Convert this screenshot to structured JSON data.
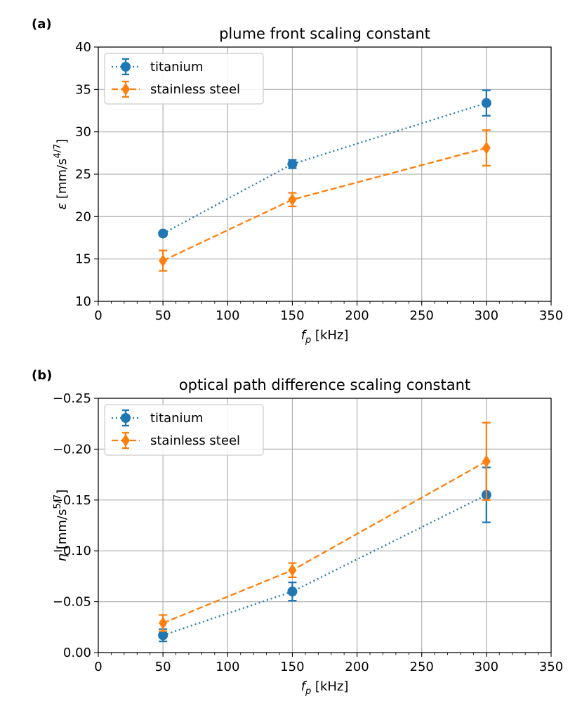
{
  "chart_data": [
    {
      "type": "line",
      "panel_label": "(a)",
      "title": "plume front scaling constant",
      "xlabel_symbol": "f",
      "xlabel_sub": "p",
      "xlabel_rest": " [kHz]",
      "ylabel_symbol": "ε",
      "ylabel_rest": " [mm/s",
      "ylabel_sup": "4/7",
      "ylabel_close": "]",
      "xlim": [
        0,
        350
      ],
      "ylim": [
        10,
        40
      ],
      "inverted_y": false,
      "xticks": [
        0,
        50,
        100,
        150,
        200,
        250,
        300,
        350
      ],
      "yticks": [
        10,
        15,
        20,
        25,
        30,
        35,
        40
      ],
      "ytick_labels": [
        "10",
        "15",
        "20",
        "25",
        "30",
        "35",
        "40"
      ],
      "grid": true,
      "legend_position": "upper-left",
      "series": [
        {
          "name": "titanium",
          "color": "#1f77b4",
          "marker": "circle",
          "linestyle": "dotted",
          "x": [
            50,
            150,
            300
          ],
          "y": [
            18.0,
            26.2,
            33.4
          ],
          "yerr": [
            0.2,
            0.5,
            1.5
          ]
        },
        {
          "name": "stainless steel",
          "color": "#ff7f0e",
          "marker": "diamond",
          "linestyle": "dashed",
          "x": [
            50,
            150,
            300
          ],
          "y": [
            14.8,
            22.0,
            28.1
          ],
          "yerr": [
            1.2,
            0.8,
            2.1
          ]
        }
      ]
    },
    {
      "type": "line",
      "panel_label": "(b)",
      "title": "optical path difference scaling constant",
      "xlabel_symbol": "f",
      "xlabel_sub": "p",
      "xlabel_rest": " [kHz]",
      "ylabel_symbol": "η",
      "ylabel_rest": " [mm/s",
      "ylabel_sup": "5/7",
      "ylabel_close": "]",
      "xlim": [
        0,
        350
      ],
      "ylim": [
        0.0,
        -0.25
      ],
      "inverted_y": true,
      "xticks": [
        0,
        50,
        100,
        150,
        200,
        250,
        300,
        350
      ],
      "yticks": [
        0.0,
        -0.05,
        -0.1,
        -0.15,
        -0.2,
        -0.25
      ],
      "ytick_labels": [
        "0.00",
        "−0.05",
        "−0.10",
        "−0.15",
        "−0.20",
        "−0.25"
      ],
      "grid": true,
      "legend_position": "upper-left",
      "series": [
        {
          "name": "titanium",
          "color": "#1f77b4",
          "marker": "circle",
          "linestyle": "dotted",
          "x": [
            50,
            150,
            300
          ],
          "y": [
            -0.017,
            -0.06,
            -0.155
          ],
          "yerr": [
            0.006,
            0.009,
            0.027
          ]
        },
        {
          "name": "stainless steel",
          "color": "#ff7f0e",
          "marker": "diamond",
          "linestyle": "dashed",
          "x": [
            50,
            150,
            300
          ],
          "y": [
            -0.029,
            -0.081,
            -0.188
          ],
          "yerr": [
            0.008,
            0.007,
            0.038
          ]
        }
      ]
    }
  ]
}
